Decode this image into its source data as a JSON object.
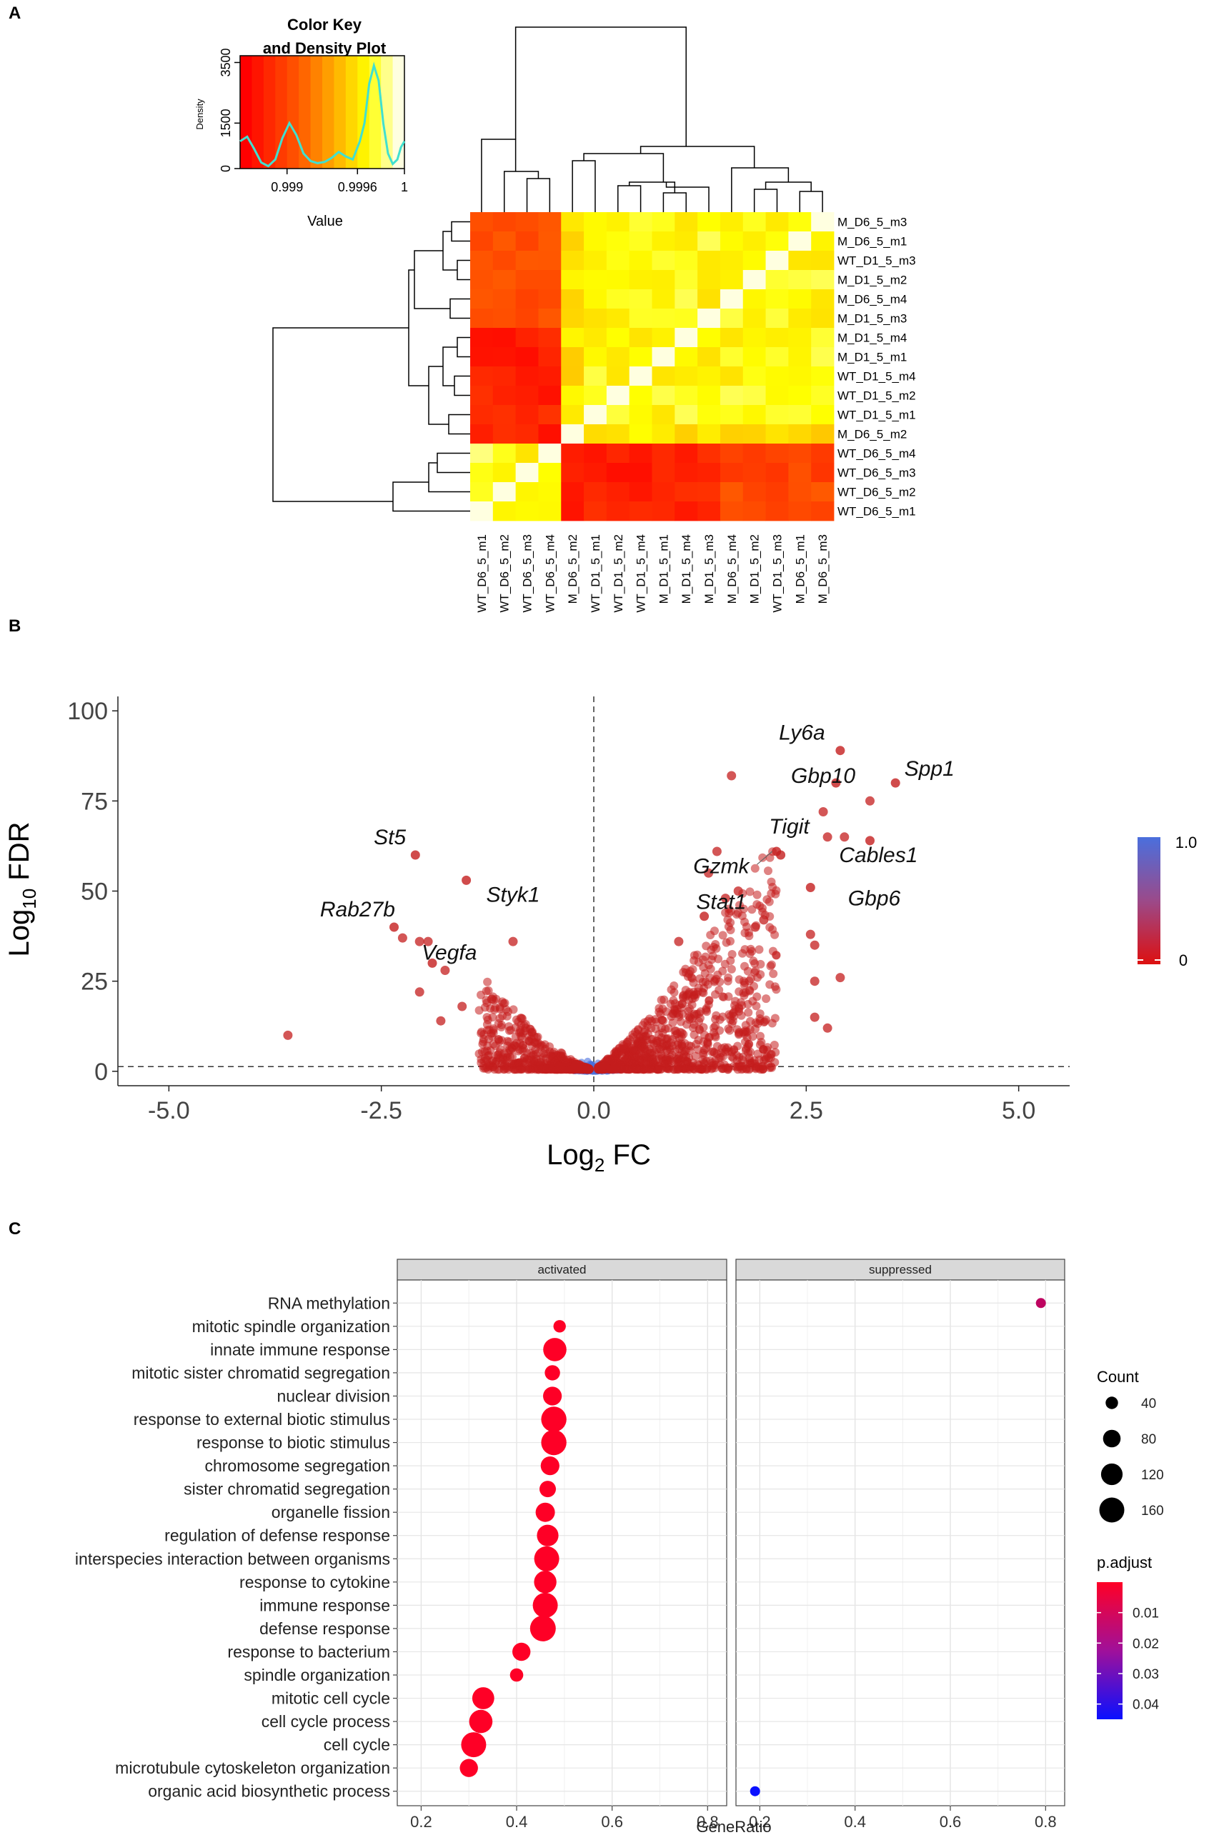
{
  "colors": {
    "heat_low": "#ff0000",
    "heat_high": "#ffffe0",
    "density_line": "#40e0d0",
    "volcano_point": "#c41e1e",
    "volcano_mid": "#4a6fdd",
    "padj_high": "#ff0026",
    "padj_low": "#0a10ff",
    "strip_bg": "#d9d9d9"
  },
  "chart_data": [
    {
      "panel": "A",
      "type": "heatmap",
      "title": "Color Key and Density Plot",
      "color_key": {
        "title_line1": "Color Key",
        "title_line2": "and Density Plot",
        "xlabel": "Value",
        "ylabel": "Density",
        "x_ticks": [
          "0.999",
          "0.9996",
          "1"
        ],
        "y_ticks": [
          "0",
          "1500",
          "3500"
        ],
        "x_range": [
          0.9986,
          1.0
        ],
        "y_range": [
          0,
          3500
        ],
        "density_curve": [
          [
            0.9986,
            900
          ],
          [
            0.99866,
            1050
          ],
          [
            0.99872,
            650
          ],
          [
            0.99878,
            200
          ],
          [
            0.99884,
            80
          ],
          [
            0.9989,
            300
          ],
          [
            0.99896,
            1000
          ],
          [
            0.99902,
            1500
          ],
          [
            0.99908,
            1100
          ],
          [
            0.99914,
            500
          ],
          [
            0.9992,
            250
          ],
          [
            0.99926,
            180
          ],
          [
            0.99932,
            220
          ],
          [
            0.99938,
            350
          ],
          [
            0.99944,
            550
          ],
          [
            0.9995,
            400
          ],
          [
            0.99956,
            300
          ],
          [
            0.99962,
            900
          ],
          [
            0.99966,
            1500
          ],
          [
            0.9997,
            2800
          ],
          [
            0.99974,
            3400
          ],
          [
            0.99978,
            2900
          ],
          [
            0.99982,
            1500
          ],
          [
            0.99986,
            500
          ],
          [
            0.9999,
            150
          ],
          [
            0.99994,
            300
          ],
          [
            0.99997,
            700
          ],
          [
            1.0,
            900
          ]
        ]
      },
      "rows": [
        "M_D6_5_m3",
        "M_D6_5_m1",
        "WT_D1_5_m3",
        "M_D1_5_m2",
        "M_D6_5_m4",
        "M_D1_5_m3",
        "M_D1_5_m4",
        "M_D1_5_m1",
        "WT_D1_5_m4",
        "WT_D1_5_m2",
        "WT_D1_5_m1",
        "M_D6_5_m2",
        "WT_D6_5_m4",
        "WT_D6_5_m3",
        "WT_D6_5_m2",
        "WT_D6_5_m1"
      ],
      "columns": [
        "WT_D6_5_m1",
        "WT_D6_5_m2",
        "WT_D6_5_m3",
        "WT_D6_5_m4",
        "M_D6_5_m2",
        "WT_D1_5_m1",
        "WT_D1_5_m2",
        "WT_D1_5_m4",
        "M_D1_5_m1",
        "M_D1_5_m4",
        "M_D1_5_m3",
        "M_D6_5_m4",
        "M_D1_5_m2",
        "WT_D1_5_m3",
        "M_D6_5_m1",
        "M_D6_5_m3"
      ]
    },
    {
      "panel": "B",
      "type": "scatter",
      "xlabel_main": "Log",
      "xlabel_sub": "2",
      "xlabel_tail": " FC",
      "ylabel_main": "Log",
      "ylabel_sub": "10",
      "ylabel_tail": " FDR",
      "x_ticks": [
        "-5.0",
        "-2.5",
        "0.0",
        "2.5",
        "5.0"
      ],
      "y_ticks": [
        "0",
        "25",
        "50",
        "75",
        "100"
      ],
      "xlim": [
        -5.6,
        5.6
      ],
      "ylim": [
        -4,
        104
      ],
      "fdr_threshold": 1.3,
      "legend_ticks": [
        "1.0",
        "0"
      ],
      "labelled_genes": [
        {
          "name": "Ly6a",
          "x": 2.9,
          "y": 89,
          "lx": 2.45,
          "ly": 92
        },
        {
          "name": "Spp1",
          "x": 3.55,
          "y": 80,
          "lx": 3.95,
          "ly": 82
        },
        {
          "name": "Gbp10",
          "x": 2.85,
          "y": 80,
          "lx": 2.7,
          "ly": 80
        },
        {
          "name": "Tigit",
          "x": 2.2,
          "y": 60,
          "lx": 2.3,
          "ly": 66
        },
        {
          "name": "Cables1",
          "x": 3.25,
          "y": 64,
          "lx": 3.35,
          "ly": 58
        },
        {
          "name": "Gzmk",
          "x": 2.15,
          "y": 61,
          "lx": 1.5,
          "ly": 55
        },
        {
          "name": "Stat1",
          "x": 1.3,
          "y": 43,
          "lx": 1.5,
          "ly": 45
        },
        {
          "name": "Gbp6",
          "x": 2.55,
          "y": 51,
          "lx": 3.3,
          "ly": 46
        },
        {
          "name": "St5",
          "x": -2.1,
          "y": 60,
          "lx": -2.4,
          "ly": 63
        },
        {
          "name": "Styk1",
          "x": -1.5,
          "y": 53,
          "lx": -0.95,
          "ly": 47
        },
        {
          "name": "Rab27b",
          "x": -2.35,
          "y": 40,
          "lx": -2.78,
          "ly": 43
        },
        {
          "name": "Vegfa",
          "x": -1.9,
          "y": 30,
          "lx": -1.7,
          "ly": 31
        }
      ],
      "extra_points": [
        [
          1.62,
          82
        ],
        [
          3.25,
          75
        ],
        [
          2.7,
          72
        ],
        [
          2.95,
          65
        ],
        [
          2.75,
          65
        ],
        [
          1.45,
          61
        ],
        [
          1.35,
          55
        ],
        [
          1.7,
          50
        ],
        [
          1.55,
          48
        ],
        [
          1.9,
          40
        ],
        [
          2.0,
          42
        ],
        [
          1.0,
          36
        ],
        [
          2.55,
          38
        ],
        [
          2.6,
          35
        ],
        [
          2.9,
          26
        ],
        [
          2.6,
          25
        ],
        [
          2.6,
          15
        ],
        [
          2.75,
          12
        ],
        [
          -3.6,
          10
        ],
        [
          -2.05,
          22
        ],
        [
          -1.75,
          28
        ],
        [
          -2.25,
          37
        ],
        [
          -2.05,
          36
        ],
        [
          -1.95,
          36
        ],
        [
          -0.95,
          36
        ],
        [
          -1.2,
          20
        ],
        [
          -1.55,
          18
        ],
        [
          -1.8,
          14
        ]
      ]
    },
    {
      "panel": "C",
      "type": "scatter",
      "xlabel": "GeneRatio",
      "facets": [
        "activated",
        "suppressed"
      ],
      "x_ticks": [
        "0.2",
        "0.4",
        "0.6",
        "0.8"
      ],
      "xlim": [
        0.15,
        0.84
      ],
      "terms": [
        "RNA methylation",
        "mitotic spindle organization",
        "innate immune response",
        "mitotic sister chromatid segregation",
        "nuclear division",
        "response to external biotic stimulus",
        "response to biotic stimulus",
        "chromosome segregation",
        "sister chromatid segregation",
        "organelle fission",
        "regulation of defense response",
        "interspecies interaction between organisms",
        "response to cytokine",
        "immune response",
        "defense response",
        "response to bacterium",
        "spindle organization",
        "mitotic cell cycle",
        "cell cycle process",
        "cell cycle",
        "microtubule cytoskeleton organization",
        "organic acid biosynthetic process"
      ],
      "activated": [
        {
          "term": "mitotic spindle organization",
          "ratio": 0.49,
          "count": 40,
          "padj": 0.0001
        },
        {
          "term": "innate immune response",
          "ratio": 0.48,
          "count": 140,
          "padj": 0.0001
        },
        {
          "term": "mitotic sister chromatid segregation",
          "ratio": 0.475,
          "count": 60,
          "padj": 0.0001
        },
        {
          "term": "nuclear division",
          "ratio": 0.475,
          "count": 90,
          "padj": 0.0001
        },
        {
          "term": "response to external biotic stimulus",
          "ratio": 0.478,
          "count": 165,
          "padj": 0.0001
        },
        {
          "term": "response to biotic stimulus",
          "ratio": 0.478,
          "count": 165,
          "padj": 0.0001
        },
        {
          "term": "chromosome segregation",
          "ratio": 0.47,
          "count": 90,
          "padj": 0.0001
        },
        {
          "term": "sister chromatid segregation",
          "ratio": 0.465,
          "count": 70,
          "padj": 0.0001
        },
        {
          "term": "organelle fission",
          "ratio": 0.46,
          "count": 95,
          "padj": 0.0001
        },
        {
          "term": "regulation of defense response",
          "ratio": 0.465,
          "count": 120,
          "padj": 0.0001
        },
        {
          "term": "interspecies interaction between organisms",
          "ratio": 0.463,
          "count": 160,
          "padj": 0.0001
        },
        {
          "term": "response to cytokine",
          "ratio": 0.46,
          "count": 130,
          "padj": 0.0001
        },
        {
          "term": "immune response",
          "ratio": 0.46,
          "count": 160,
          "padj": 0.0001
        },
        {
          "term": "defense response",
          "ratio": 0.455,
          "count": 170,
          "padj": 0.0001
        },
        {
          "term": "response to bacterium",
          "ratio": 0.41,
          "count": 85,
          "padj": 0.0001
        },
        {
          "term": "spindle organization",
          "ratio": 0.4,
          "count": 45,
          "padj": 0.0001
        },
        {
          "term": "mitotic cell cycle",
          "ratio": 0.33,
          "count": 125,
          "padj": 0.0001
        },
        {
          "term": "cell cycle process",
          "ratio": 0.325,
          "count": 140,
          "padj": 0.0001
        },
        {
          "term": "cell cycle",
          "ratio": 0.31,
          "count": 160,
          "padj": 0.0001
        },
        {
          "term": "microtubule cytoskeleton organization",
          "ratio": 0.3,
          "count": 85,
          "padj": 0.0001
        }
      ],
      "suppressed": [
        {
          "term": "RNA methylation",
          "ratio": 0.79,
          "count": 20,
          "padj": 0.012
        },
        {
          "term": "organic acid biosynthetic process",
          "ratio": 0.19,
          "count": 20,
          "padj": 0.045
        }
      ],
      "count_legend": {
        "title": "Count",
        "values": [
          "40",
          "80",
          "120",
          "160"
        ]
      },
      "padj_legend": {
        "title": "p.adjust",
        "values": [
          "0.01",
          "0.02",
          "0.03",
          "0.04"
        ]
      }
    }
  ],
  "panel_labels": [
    "A",
    "B",
    "C"
  ]
}
